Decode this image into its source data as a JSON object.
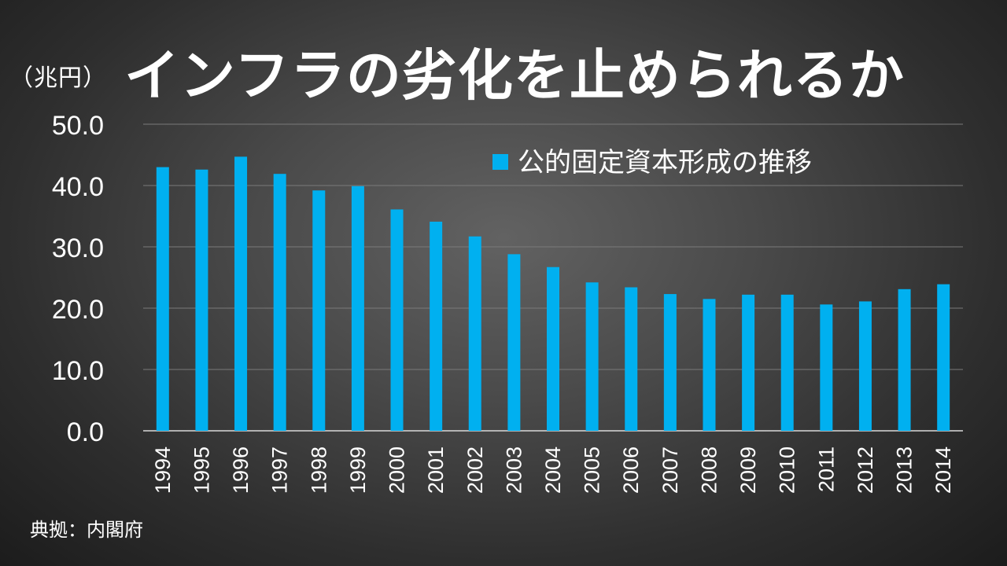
{
  "title": "インフラの劣化を止められるか",
  "unit_label": "（兆円）",
  "source": "典拠：内閣府",
  "colors": {
    "bar": "#00b0f0",
    "gridline": "#7a7a7a",
    "axis": "#d9d9d9",
    "text": "#ffffff"
  },
  "chart_data": {
    "type": "bar",
    "categories": [
      "1994",
      "1995",
      "1996",
      "1997",
      "1998",
      "1999",
      "2000",
      "2001",
      "2002",
      "2003",
      "2004",
      "2005",
      "2006",
      "2007",
      "2008",
      "2009",
      "2010",
      "2011",
      "2012",
      "2013",
      "2014"
    ],
    "series": [
      {
        "name": "公的固定資本形成の推移",
        "values": [
          43.0,
          42.6,
          44.7,
          41.9,
          39.2,
          39.9,
          36.1,
          34.1,
          31.7,
          28.8,
          26.7,
          24.2,
          23.4,
          22.3,
          21.5,
          22.2,
          22.2,
          20.6,
          21.1,
          23.1,
          23.9
        ]
      }
    ],
    "ylim": [
      0,
      50
    ],
    "yticks": [
      "0.0",
      "10.0",
      "20.0",
      "30.0",
      "40.0",
      "50.0"
    ],
    "ytick_values": [
      0,
      10,
      20,
      30,
      40,
      50
    ],
    "grid": true,
    "legend_position": "top-right",
    "xlabel": "",
    "ylabel": "（兆円）"
  }
}
